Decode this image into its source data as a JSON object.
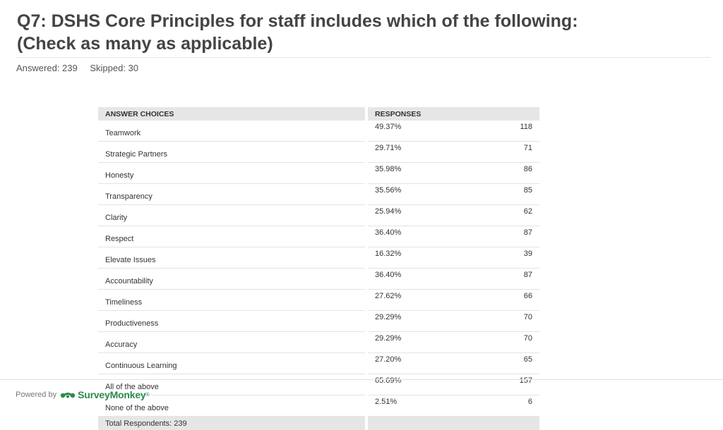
{
  "title_line1": "Q7: DSHS Core Principles for staff includes which of the following:",
  "title_line2": "(Check as many as applicable)",
  "answered": "Answered: 239",
  "skipped": "Skipped: 30",
  "table": {
    "header_choices": "ANSWER CHOICES",
    "header_responses": "RESPONSES",
    "rows": [
      {
        "choice": "Teamwork",
        "percent": "49.37%",
        "count": "118"
      },
      {
        "choice": "Strategic Partners",
        "percent": "29.71%",
        "count": "71"
      },
      {
        "choice": "Honesty",
        "percent": "35.98%",
        "count": "86"
      },
      {
        "choice": "Transparency",
        "percent": "35.56%",
        "count": "85"
      },
      {
        "choice": "Clarity",
        "percent": "25.94%",
        "count": "62"
      },
      {
        "choice": "Respect",
        "percent": "36.40%",
        "count": "87"
      },
      {
        "choice": "Elevate Issues",
        "percent": "16.32%",
        "count": "39"
      },
      {
        "choice": "Accountability",
        "percent": "36.40%",
        "count": "87"
      },
      {
        "choice": "Timeliness",
        "percent": "27.62%",
        "count": "66"
      },
      {
        "choice": "Productiveness",
        "percent": "29.29%",
        "count": "70"
      },
      {
        "choice": "Accuracy",
        "percent": "29.29%",
        "count": "70"
      },
      {
        "choice": "Continuous Learning",
        "percent": "27.20%",
        "count": "65"
      },
      {
        "choice": "All of the above",
        "percent": "65.69%",
        "count": "157"
      },
      {
        "choice": "None of the above",
        "percent": "2.51%",
        "count": "6"
      }
    ],
    "total_respondents": "Total Respondents: 239"
  },
  "footer": {
    "powered_by": "Powered by",
    "logo_text": "SurveyMonkey",
    "logo_icon": "surveymonkey-logo-icon",
    "brand_color": "#2d8a4e"
  }
}
